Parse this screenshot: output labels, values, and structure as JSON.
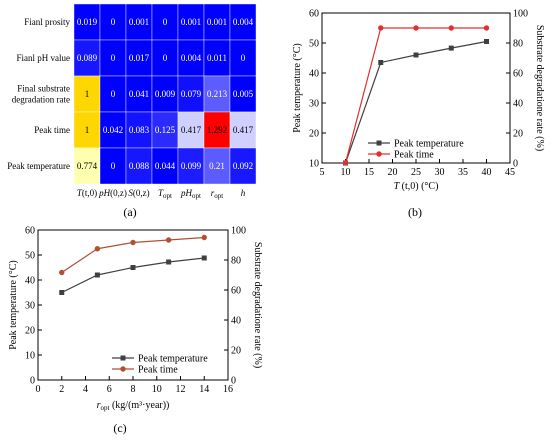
{
  "colors": {
    "heat_low": "#0000ff",
    "heat_mid": "#ffffff",
    "heat_high": "#ff0000",
    "heat_yellow": "#ffd700",
    "line_dark": "#404040",
    "line_red": "#e03030",
    "line_brown": "#b05030"
  },
  "chart_data": [
    {
      "panel": "(a)",
      "type": "heatmap",
      "rows": [
        "Fianl prosity",
        "Fianl pH value",
        "Final substrate degradation rate",
        "Peak time",
        "Peak temperature"
      ],
      "row_lines": [
        [
          "Fianl prosity"
        ],
        [
          "Fianl pH value"
        ],
        [
          "Final substrate",
          "degradation rate"
        ],
        [
          "Peak time"
        ],
        [
          "Peak temperature"
        ]
      ],
      "columns": [
        {
          "base": "T",
          "paren": "(t,0)",
          "sub": ""
        },
        {
          "base": "pH",
          "paren": "(0,z)",
          "sub": ""
        },
        {
          "base": "S",
          "paren": "(0,z)",
          "sub": ""
        },
        {
          "base": "T",
          "paren": "",
          "sub": "opt"
        },
        {
          "base": "pH",
          "paren": "",
          "sub": "opt"
        },
        {
          "base": "r",
          "paren": "",
          "sub": "opt"
        },
        {
          "base": "h",
          "paren": "",
          "sub": ""
        }
      ],
      "values": [
        [
          "0.019",
          "0",
          "0.001",
          "0",
          "0.001",
          "0.001",
          "0.004"
        ],
        [
          "0.089",
          "0",
          "0.017",
          "0",
          "0.004",
          "0.011",
          "0"
        ],
        [
          "1",
          "0",
          "0.041",
          "0.009",
          "0.079",
          "0.213",
          "0.005"
        ],
        [
          "1",
          "0.042",
          "0.083",
          "0.125",
          "0.417",
          "1.292",
          "0.417"
        ],
        [
          "0.774",
          "0",
          "0.088",
          "0.044",
          "0.099",
          "0.21",
          "0.092"
        ]
      ]
    },
    {
      "panel": "(b)",
      "type": "line",
      "x": [
        10,
        17.5,
        25,
        32.5,
        40
      ],
      "xlabel": "T (t,0) (°C)",
      "xlabel_parts": {
        "var": "T",
        "paren": " (t,0) (°C)"
      },
      "ylabel_left": "Peak temperature (°C)",
      "ylabel_right": "Substrate degradatione rate (%)",
      "xlim": [
        5,
        45
      ],
      "xticks": [
        5,
        10,
        15,
        20,
        25,
        30,
        35,
        40,
        45
      ],
      "ylim_left": [
        10,
        60
      ],
      "yticks_left": [
        10,
        20,
        30,
        40,
        50,
        60
      ],
      "ylim_right": [
        0,
        100
      ],
      "yticks_right": [
        0,
        20,
        40,
        60,
        80,
        100
      ],
      "series": [
        {
          "name": "Peak temperature",
          "axis": "left",
          "marker": "square",
          "color": "#404040",
          "values": [
            10,
            43.5,
            46,
            48.3,
            50.5
          ]
        },
        {
          "name": "Peak time",
          "axis": "left",
          "marker": "circle",
          "color": "#e03030",
          "values": [
            10,
            55,
            55,
            55,
            55
          ]
        }
      ],
      "legend": "bottom-right"
    },
    {
      "panel": "(c)",
      "type": "line",
      "x": [
        2,
        5,
        8,
        11,
        14
      ],
      "xlabel": "r_opt (kg/(m³·year))",
      "xlabel_parts": {
        "var": "r",
        "sub": "opt",
        "rest": " (kg/(m³·year))"
      },
      "ylabel_left": "Peak temperature (°C)",
      "ylabel_right": "Substrate degradatione rate (%)",
      "xlim": [
        0,
        16
      ],
      "xticks": [
        0,
        2,
        4,
        6,
        8,
        10,
        12,
        14,
        16
      ],
      "ylim_left": [
        0,
        60
      ],
      "yticks_left": [
        0,
        10,
        20,
        30,
        40,
        50,
        60
      ],
      "ylim_right": [
        0,
        100
      ],
      "yticks_right": [
        0,
        20,
        40,
        60,
        80,
        100
      ],
      "series": [
        {
          "name": "Peak temperature",
          "axis": "left",
          "marker": "square",
          "color": "#404040",
          "values": [
            35,
            42,
            45,
            47.2,
            48.8
          ]
        },
        {
          "name": "Peak time",
          "axis": "left",
          "marker": "circle",
          "color": "#b05030",
          "values": [
            43,
            52.5,
            55,
            56,
            57
          ]
        }
      ],
      "legend": "bottom-right"
    }
  ]
}
